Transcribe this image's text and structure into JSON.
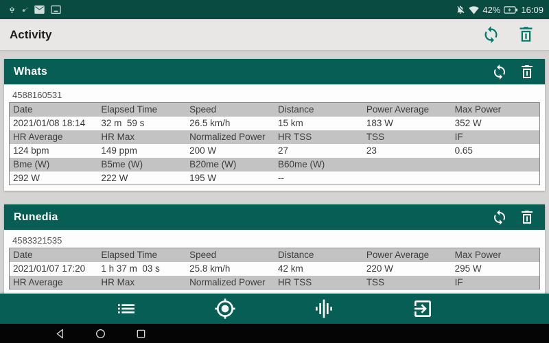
{
  "colors": {
    "status_bar_teal": "#0a4b41",
    "header_teal": "#075e54",
    "accent_icon_teal": "#00796b",
    "app_bar_bg": "#e9e7e5",
    "content_bg": "#d6d4d2",
    "table_header_gray": "#c3c3c3",
    "android_bar_black": "#050505"
  },
  "status_bar": {
    "time": "16:09",
    "battery_percent": "42%",
    "left_icons": [
      "usb-icon",
      "key-icon",
      "mail-icon",
      "system-update-icon"
    ],
    "right_icons": [
      "mute-icon",
      "wifi-icon",
      "battery-icon"
    ]
  },
  "app_bar": {
    "title": "Activity",
    "refresh_action": "refresh",
    "delete_action": "delete"
  },
  "cards": [
    {
      "title": "Whats",
      "activity_id": "4588160531",
      "rows": [
        {
          "type": "header",
          "cells": [
            "Date",
            "Elapsed Time",
            "Speed",
            "Distance",
            "Power Average",
            "Max Power"
          ]
        },
        {
          "type": "data",
          "cells": [
            "2021/01/08 18:14",
            "32 m  59 s",
            "26.5 km/h",
            "15 km",
            "183 W",
            "352 W"
          ]
        },
        {
          "type": "header",
          "cells": [
            "HR Average",
            "HR Max",
            "Normalized Power",
            "HR TSS",
            "TSS",
            "IF"
          ]
        },
        {
          "type": "data",
          "cells": [
            "124 bpm",
            "149 ppm",
            "200 W",
            "27",
            "23",
            "0.65"
          ]
        },
        {
          "type": "header",
          "cells": [
            "Bme (W)",
            "B5me (W)",
            "B20me (W)",
            "B60me (W)",
            "",
            ""
          ]
        },
        {
          "type": "data",
          "cells": [
            "292 W",
            "222 W",
            "195 W",
            "--",
            "",
            ""
          ]
        }
      ]
    },
    {
      "title": "Runedia",
      "activity_id": "4583321535",
      "rows": [
        {
          "type": "header",
          "cells": [
            "Date",
            "Elapsed Time",
            "Speed",
            "Distance",
            "Power Average",
            "Max Power"
          ]
        },
        {
          "type": "data",
          "cells": [
            "2021/01/07 17:20",
            "1 h 37 m  03 s",
            "25.8 km/h",
            "42 km",
            "220 W",
            "295 W"
          ]
        },
        {
          "type": "header",
          "cells": [
            "HR Average",
            "HR Max",
            "Normalized Power",
            "HR TSS",
            "TSS",
            "IF"
          ]
        }
      ]
    }
  ],
  "bottom_nav": {
    "items": [
      "list",
      "gps-target",
      "equalizer",
      "exit"
    ]
  },
  "android_nav": {
    "buttons": [
      "back",
      "home",
      "recents"
    ]
  }
}
